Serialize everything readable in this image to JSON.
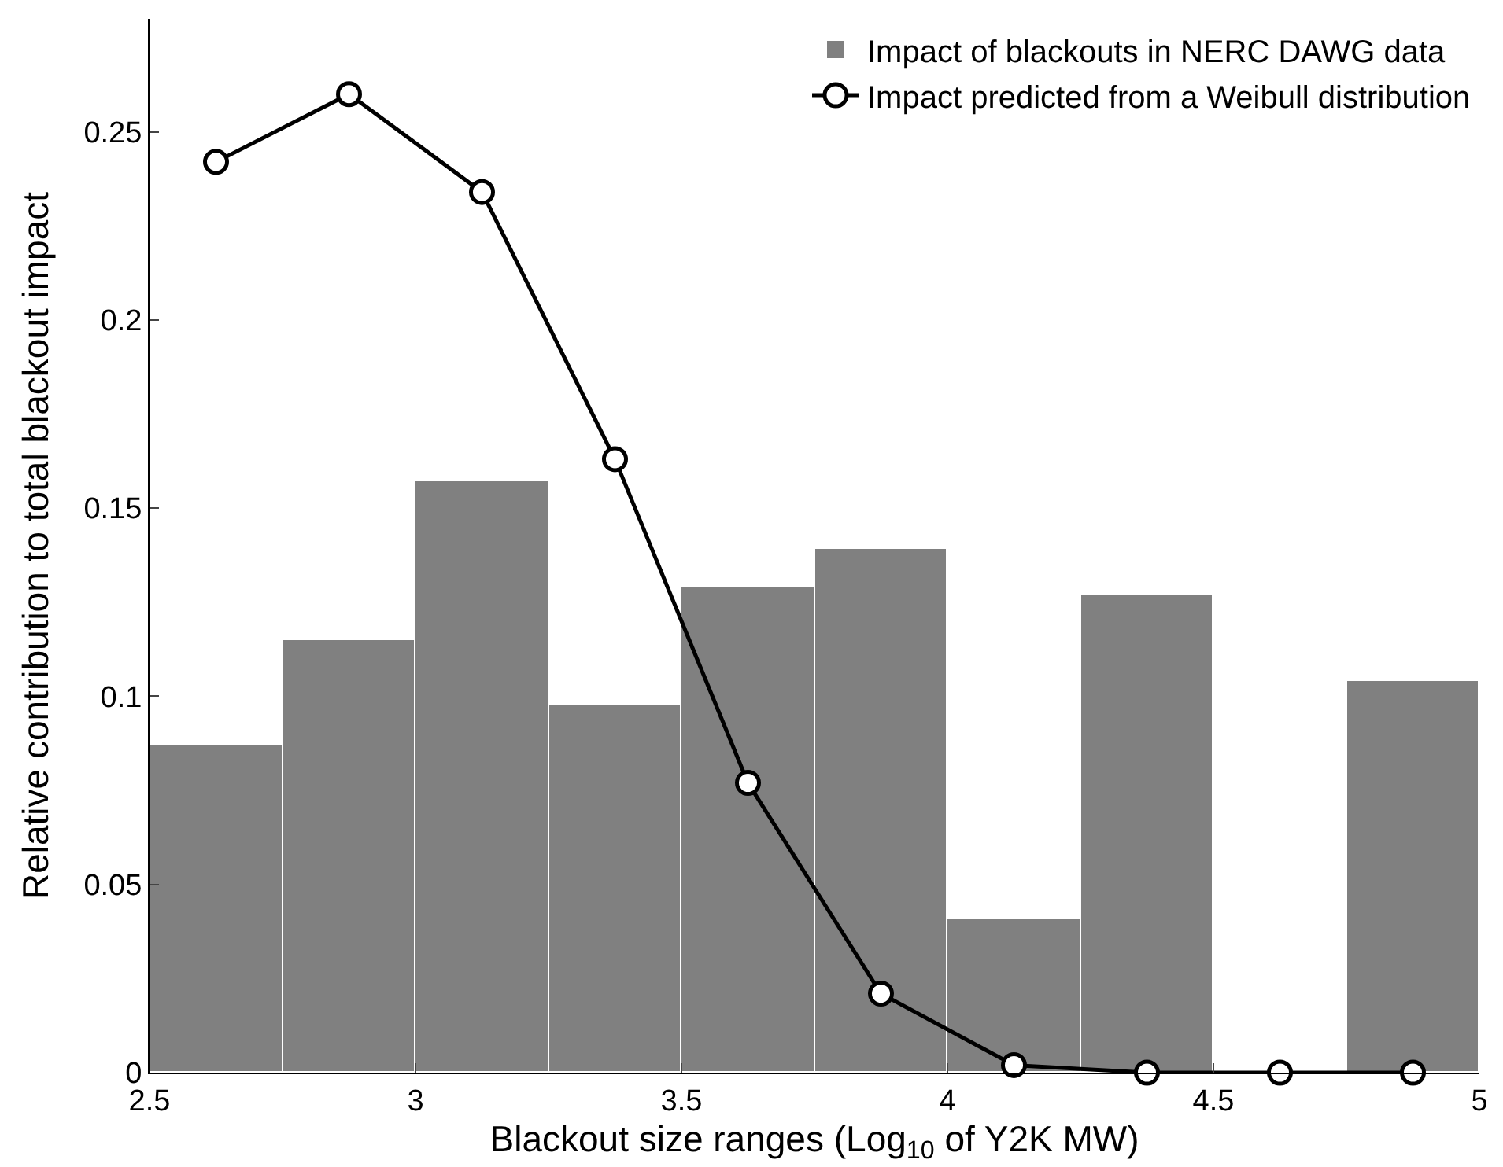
{
  "chart_data": {
    "type": "histogram",
    "xlabel": "Blackout size ranges (Log$_{10}$ of Y2K MW)",
    "ylabel": "Relative contribution to total blackout impact",
    "xlim": [
      2.5,
      5
    ],
    "xticks": [
      2.5,
      3,
      3.5,
      4,
      4.5,
      5
    ],
    "ylim": [
      0,
      0.28
    ],
    "yticks": [
      0,
      0.05,
      0.1,
      0.15,
      0.2,
      0.25
    ],
    "legend": "top right",
    "series": [
      {
        "name": "Impact of blackouts in NERC DAWG data",
        "color": "#808080",
        "bins": [
          2.5,
          2.75,
          3,
          3.25,
          3.5,
          3.75,
          4,
          4.25,
          4.5,
          4.75,
          5
        ],
        "values": [
          0.087,
          0.115,
          0.157,
          0.098,
          0.129,
          0.139,
          0.041,
          0.127,
          0,
          0.104
        ]
      },
      {
        "type": "line",
        "name": "Impact predicted from a Weibull distribution",
        "color": "#000000",
        "marker": "circle",
        "line_style": "solid",
        "x": [
          2.625,
          2.875,
          3.125,
          3.375,
          3.625,
          3.875,
          4.125,
          4.375,
          4.625,
          4.875
        ],
        "values": [
          0.242,
          0.26,
          0.234,
          0.163,
          0.077,
          0.021,
          0.002,
          0,
          0,
          0
        ]
      }
    ]
  }
}
